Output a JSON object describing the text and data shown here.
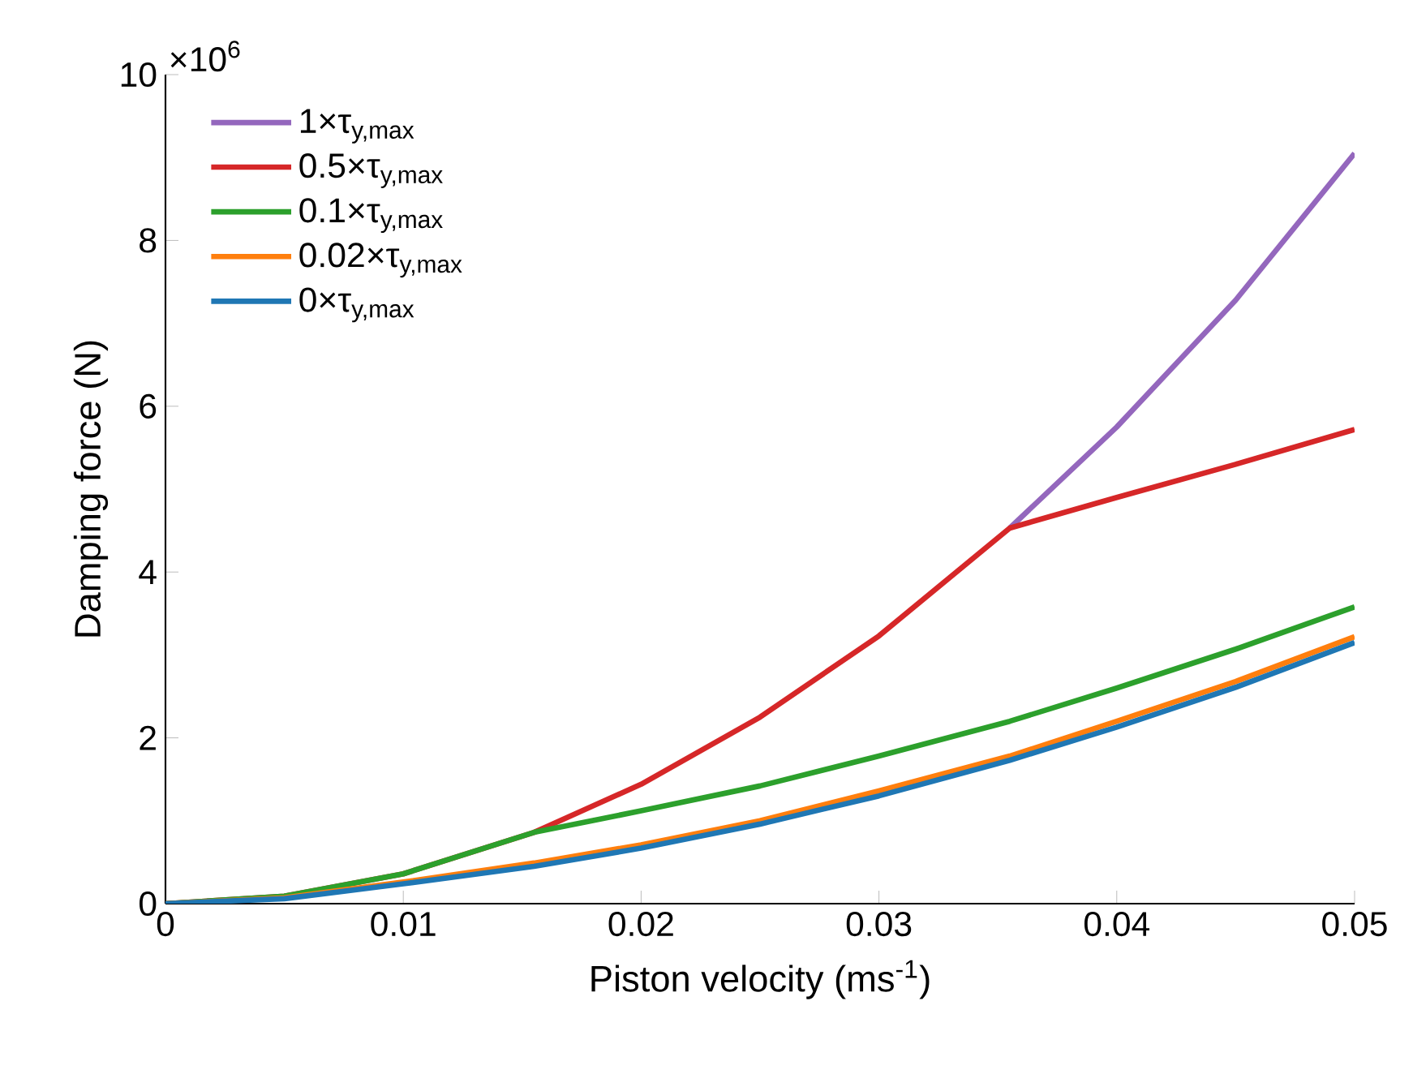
{
  "chart_data": {
    "type": "line",
    "xlabel": "Piston velocity (ms$^{-1}$)",
    "ylabel": "Damping force (N)",
    "annotations": [
      "×10$^{6}$"
    ],
    "x": [
      0,
      0.005,
      0.01,
      0.0155,
      0.02,
      0.025,
      0.03,
      0.0355,
      0.04,
      0.045,
      0.05
    ],
    "series": [
      {
        "name": "1×τ$_{y,max}$",
        "color": "#9467bd",
        "values": [
          null,
          null,
          null,
          null,
          null,
          null,
          null,
          4.53,
          5.75,
          7.28,
          9.05
        ]
      },
      {
        "name": "0.5×τ$_{y,max}$",
        "color": "#d62728",
        "values": [
          0,
          0.09,
          0.36,
          0.86,
          1.44,
          2.25,
          3.23,
          4.53,
          4.9,
          5.3,
          5.72
        ]
      },
      {
        "name": "0.1×τ$_{y,max}$",
        "color": "#2ca02c",
        "values": [
          0,
          0.09,
          0.36,
          0.86,
          1.12,
          1.42,
          1.78,
          2.2,
          2.6,
          3.07,
          3.58
        ]
      },
      {
        "name": "0.02×τ$_{y,max}$",
        "color": "#ff7f0e",
        "values": [
          0,
          0.07,
          0.26,
          0.49,
          0.71,
          1.0,
          1.36,
          1.78,
          2.2,
          2.68,
          3.22
        ]
      },
      {
        "name": "0×τ$_{y,max}$",
        "color": "#1f77b4",
        "values": [
          0,
          0.06,
          0.24,
          0.45,
          0.67,
          0.96,
          1.3,
          1.73,
          2.13,
          2.61,
          3.15
        ]
      }
    ],
    "xlim": [
      0,
      0.05
    ],
    "ylim": [
      0,
      10
    ],
    "xticks": [
      0,
      0.01,
      0.02,
      0.03,
      0.04,
      0.05
    ],
    "yticks": [
      0,
      2,
      4,
      6,
      8,
      10
    ],
    "grid": false,
    "legend": "top left",
    "marker": "none",
    "line_style": "solid"
  }
}
